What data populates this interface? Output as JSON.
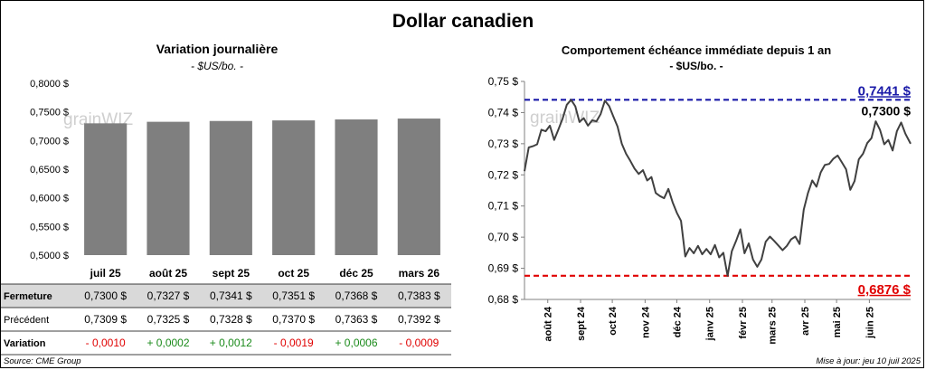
{
  "title": "Dollar canadien",
  "left_panel": {
    "title": "Variation  journalière",
    "subtitle": "- $US/bo. -",
    "watermark": "grainWIZ",
    "table": {
      "rows": [
        {
          "label": "Fermeture",
          "values": [
            "0,7300  $",
            "0,7327  $",
            "0,7341  $",
            "0,7351  $",
            "0,7368  $",
            "0,7383  $"
          ]
        },
        {
          "label": "Précédent",
          "values": [
            "0,7309  $",
            "0,7325  $",
            "0,7328  $",
            "0,7370  $",
            "0,7363  $",
            "0,7392  $"
          ]
        },
        {
          "label": "Variation",
          "values": [
            "- 0,0010",
            "+ 0,0002",
            "+ 0,0012",
            "- 0,0019",
            "+ 0,0006",
            "- 0,0009"
          ],
          "colors": [
            "#e00000",
            "#1a8a1a",
            "#1a8a1a",
            "#e00000",
            "#1a8a1a",
            "#e00000"
          ]
        }
      ]
    }
  },
  "right_panel": {
    "title": "Comportement échéance immédiate depuis 1 an",
    "subtitle": "- $US/bo. -",
    "watermark": "grainWIZ",
    "high_label": "0,7441 $",
    "low_label": "0,6876 $",
    "last_label": "0,7300 $"
  },
  "source": "Source: CME Group",
  "updated": "Mise à jour: jeu 10 juil 2025",
  "chart_data": [
    {
      "type": "bar",
      "title": "Variation  journalière",
      "subtitle": "- $US/bo. -",
      "categories": [
        "juil 25",
        "août 25",
        "sept 25",
        "oct 25",
        "déc 25",
        "mars 26"
      ],
      "values": [
        0.73,
        0.7327,
        0.7341,
        0.7351,
        0.7368,
        0.7383
      ],
      "ylim": [
        0.5,
        0.8
      ],
      "yticks": [
        "0,5000 $",
        "0,5500 $",
        "0,6000 $",
        "0,6500 $",
        "0,7000 $",
        "0,7500 $",
        "0,8000 $"
      ],
      "bar_color": "#7f7f7f",
      "grid": false
    },
    {
      "type": "line",
      "title": "Comportement échéance immédiate depuis 1 an",
      "subtitle": "- $US/bo. -",
      "x_range": [
        "2024-07-10",
        "2025-07-10"
      ],
      "xticks": [
        "août 24",
        "sept 24",
        "oct 24",
        "nov 24",
        "déc 24",
        "janv 25",
        "févr 25",
        "mars 25",
        "avr 25",
        "mai 25",
        "juin 25"
      ],
      "ylim": [
        0.68,
        0.75
      ],
      "yticks": [
        "0,68 $",
        "0,69 $",
        "0,70 $",
        "0,71 $",
        "0,72 $",
        "0,73 $",
        "0,74 $",
        "0,75 $"
      ],
      "line_color": "#404040",
      "high": 0.7441,
      "low": 0.6876,
      "last": 0.73,
      "high_color": "#1a1aa8",
      "low_color": "#e00000",
      "grid": false,
      "series": [
        {
          "x": [
            "2024-07-10",
            "2024-07-14",
            "2024-07-18",
            "2024-07-22",
            "2024-07-26",
            "2024-07-30",
            "2024-08-03",
            "2024-08-07",
            "2024-08-11",
            "2024-08-15",
            "2024-08-19",
            "2024-08-23",
            "2024-08-27",
            "2024-08-31",
            "2024-09-04",
            "2024-09-08",
            "2024-09-12",
            "2024-09-16",
            "2024-09-20",
            "2024-09-24",
            "2024-09-28",
            "2024-10-02",
            "2024-10-06",
            "2024-10-10",
            "2024-10-14",
            "2024-10-18",
            "2024-10-22",
            "2024-10-26",
            "2024-10-30",
            "2024-11-03",
            "2024-11-07",
            "2024-11-11",
            "2024-11-15",
            "2024-11-19",
            "2024-11-23",
            "2024-11-27",
            "2024-12-01",
            "2024-12-05",
            "2024-12-09",
            "2024-12-13",
            "2024-12-17",
            "2024-12-21",
            "2024-12-25",
            "2024-12-29",
            "2025-01-02",
            "2025-01-06",
            "2025-01-10",
            "2025-01-14",
            "2025-01-18",
            "2025-01-22",
            "2025-01-26",
            "2025-01-30",
            "2025-02-03",
            "2025-02-07",
            "2025-02-11",
            "2025-02-15",
            "2025-02-19",
            "2025-02-23",
            "2025-02-27",
            "2025-03-03",
            "2025-03-07",
            "2025-03-11",
            "2025-03-15",
            "2025-03-19",
            "2025-03-23",
            "2025-03-27",
            "2025-03-31",
            "2025-04-04",
            "2025-04-08",
            "2025-04-12",
            "2025-04-16",
            "2025-04-20",
            "2025-04-24",
            "2025-04-28",
            "2025-05-02",
            "2025-05-06",
            "2025-05-10",
            "2025-05-14",
            "2025-05-18",
            "2025-05-22",
            "2025-05-26",
            "2025-05-30",
            "2025-06-03",
            "2025-06-07",
            "2025-06-11",
            "2025-06-15",
            "2025-06-19",
            "2025-06-23",
            "2025-06-27",
            "2025-07-01",
            "2025-07-05",
            "2025-07-10"
          ],
          "y": [
            0.7212,
            0.7288,
            0.7292,
            0.7298,
            0.7345,
            0.734,
            0.7358,
            0.7312,
            0.7345,
            0.738,
            0.7425,
            0.7441,
            0.742,
            0.737,
            0.7382,
            0.7358,
            0.7375,
            0.7372,
            0.7395,
            0.7438,
            0.7421,
            0.7387,
            0.7355,
            0.73,
            0.7268,
            0.7245,
            0.722,
            0.7203,
            0.7215,
            0.7182,
            0.7193,
            0.7142,
            0.7132,
            0.7125,
            0.7155,
            0.7112,
            0.7078,
            0.7052,
            0.6938,
            0.6965,
            0.6948,
            0.6972,
            0.6945,
            0.6962,
            0.6945,
            0.6975,
            0.6935,
            0.695,
            0.6876,
            0.6955,
            0.6988,
            0.7025,
            0.6948,
            0.698,
            0.6928,
            0.6905,
            0.6928,
            0.6985,
            0.7002,
            0.6988,
            0.6973,
            0.6958,
            0.6972,
            0.6993,
            0.7002,
            0.6978,
            0.7088,
            0.7142,
            0.7182,
            0.7162,
            0.7208,
            0.7232,
            0.7235,
            0.7252,
            0.7262,
            0.724,
            0.7218,
            0.7152,
            0.718,
            0.725,
            0.7268,
            0.7302,
            0.7318,
            0.7372,
            0.7345,
            0.7298,
            0.7312,
            0.7278,
            0.734,
            0.7368,
            0.7332,
            0.73
          ]
        }
      ]
    }
  ]
}
